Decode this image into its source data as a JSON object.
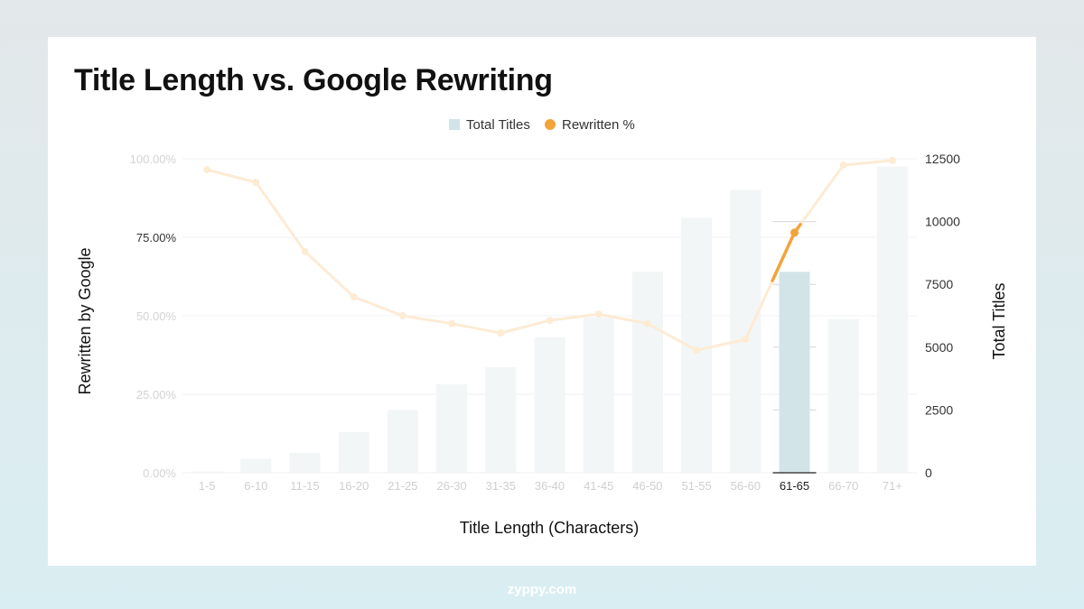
{
  "page": {
    "title": "Title Length vs. Google Rewriting",
    "footer": "zyppy.com"
  },
  "colors": {
    "bar": "#d2e4e8",
    "bar_faded": "#f3f6f6",
    "line": "#f2a43a",
    "line_faded": "#fdebd4",
    "grid": "#f1f1f1"
  },
  "chart_data": {
    "type": "bar",
    "title": "Title Length vs. Google Rewriting",
    "categories": [
      "1-5",
      "6-10",
      "11-15",
      "16-20",
      "21-25",
      "26-30",
      "31-35",
      "36-40",
      "41-45",
      "46-50",
      "51-55",
      "56-60",
      "61-65",
      "66-70",
      "71+"
    ],
    "highlighted_category": "61-65",
    "series": [
      {
        "name": "Total Titles",
        "type": "bar",
        "axis": "right",
        "values": [
          50,
          560,
          800,
          1620,
          2500,
          3520,
          4200,
          5400,
          6180,
          8000,
          10150,
          11260,
          8000,
          6120,
          12200
        ]
      },
      {
        "name": "Rewritten %",
        "type": "line",
        "axis": "left",
        "values": [
          96.5,
          92.5,
          70.5,
          56.0,
          50.0,
          47.5,
          44.5,
          48.5,
          50.5,
          47.5,
          39.0,
          42.5,
          76.5,
          98.0,
          99.5
        ]
      }
    ],
    "y_left": {
      "label": "Rewritten by Google",
      "ticks": [
        "0.00%",
        "25.00%",
        "50.00%",
        "75.00%",
        "100.00%"
      ],
      "range": [
        0,
        100
      ]
    },
    "y_right": {
      "label": "Total Titles",
      "ticks": [
        "0",
        "2500",
        "5000",
        "7500",
        "10000",
        "12500"
      ],
      "range": [
        0,
        12500
      ]
    },
    "xlabel": "Title Length (Characters)",
    "legend": [
      "Total Titles",
      "Rewritten %"
    ],
    "legend_position": "top-center",
    "grid": true
  }
}
